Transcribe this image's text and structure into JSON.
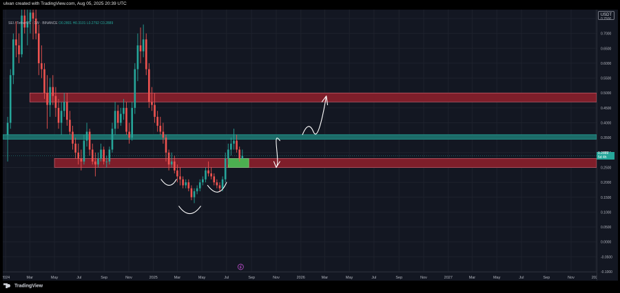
{
  "header": {
    "creator": "ulvan created with TradingView.com, Aug 05, 2025 20:39 UTC"
  },
  "legend": {
    "symbol": "SEI / TetherUS · 1W · BINANCE",
    "open": "O0.2801",
    "high": "H0.3101",
    "low": "L0.2792",
    "close": "C0.2889"
  },
  "axis": {
    "unit": "USDT",
    "price_ticks": [
      "0.7500",
      "0.7000",
      "0.6500",
      "0.6000",
      "0.5500",
      "0.5000",
      "0.4500",
      "0.4000",
      "0.3500",
      "0.3000",
      "0.2500",
      "0.2000",
      "0.1500",
      "0.1000",
      "0.0500",
      "0.0000",
      "-0.0500",
      "-0.1000"
    ],
    "time_ticks": [
      "2024",
      "Mar",
      "May",
      "Jul",
      "Sep",
      "Nov",
      "2025",
      "Mar",
      "May",
      "Jul",
      "Sep",
      "Nov",
      "2026",
      "Mar",
      "May",
      "Jul",
      "Sep",
      "Nov",
      "2027",
      "Mar",
      "May",
      "Jul",
      "Sep",
      "Nov",
      "2028"
    ]
  },
  "last_price": {
    "value": "0.2889",
    "countdown": "5d 4h"
  },
  "footer": {
    "brand": "TradingView"
  },
  "colors": {
    "background": "#131722",
    "up": "#26a69a",
    "down": "#ef5350",
    "resistance_zone": "#7e1e2a",
    "pivot_zone": "#1c6b68",
    "target_box": "#4caf50"
  },
  "chart_data": {
    "type": "candlestick",
    "title": "SEI / TetherUS · 1W · BINANCE",
    "ylabel": "USDT",
    "ylim": [
      -0.1,
      0.78
    ],
    "xlim": [
      "2023-12-25",
      "2028-01-03"
    ],
    "grid": true,
    "zones": [
      {
        "kind": "resistance",
        "color": "#7e1e2a",
        "y_low": 0.47,
        "y_high": 0.5,
        "x_from": "2024-03-01",
        "x_to": "2028-01-03"
      },
      {
        "kind": "pivot",
        "color": "#1c6b68",
        "y_low": 0.345,
        "y_high": 0.36,
        "x_from": "2023-12-25",
        "x_to": "2028-01-03"
      },
      {
        "kind": "support",
        "color": "#7e1e2a",
        "y_low": 0.25,
        "y_high": 0.28,
        "x_from": "2024-05-01",
        "x_to": "2028-01-03"
      },
      {
        "kind": "target-box",
        "color": "#4caf50",
        "y_low": 0.25,
        "y_high": 0.28,
        "x_from": "2025-07-05",
        "x_to": "2025-08-25"
      }
    ],
    "series": [
      {
        "candles": [
          {
            "x": "2024-01-01",
            "o": 0.36,
            "h": 0.42,
            "l": 0.27,
            "c": 0.4
          },
          {
            "x": "2024-01-08",
            "o": 0.4,
            "h": 0.58,
            "l": 0.38,
            "c": 0.56
          },
          {
            "x": "2024-01-15",
            "o": 0.56,
            "h": 0.7,
            "l": 0.53,
            "c": 0.68
          },
          {
            "x": "2024-01-22",
            "o": 0.68,
            "h": 0.74,
            "l": 0.62,
            "c": 0.66
          },
          {
            "x": "2024-01-29",
            "o": 0.66,
            "h": 0.7,
            "l": 0.6,
            "c": 0.63
          },
          {
            "x": "2024-02-05",
            "o": 0.63,
            "h": 0.78,
            "l": 0.62,
            "c": 0.76
          },
          {
            "x": "2024-02-12",
            "o": 0.76,
            "h": 0.8,
            "l": 0.7,
            "c": 0.72
          },
          {
            "x": "2024-02-19",
            "o": 0.72,
            "h": 0.78,
            "l": 0.66,
            "c": 0.74
          },
          {
            "x": "2024-02-26",
            "o": 0.74,
            "h": 0.8,
            "l": 0.7,
            "c": 0.77
          },
          {
            "x": "2024-03-04",
            "o": 0.77,
            "h": 0.8,
            "l": 0.68,
            "c": 0.75
          },
          {
            "x": "2024-03-11",
            "o": 0.75,
            "h": 0.8,
            "l": 0.68,
            "c": 0.7
          },
          {
            "x": "2024-03-18",
            "o": 0.7,
            "h": 0.73,
            "l": 0.56,
            "c": 0.6
          },
          {
            "x": "2024-03-25",
            "o": 0.6,
            "h": 0.66,
            "l": 0.55,
            "c": 0.58
          },
          {
            "x": "2024-04-01",
            "o": 0.58,
            "h": 0.6,
            "l": 0.48,
            "c": 0.5
          },
          {
            "x": "2024-04-08",
            "o": 0.5,
            "h": 0.56,
            "l": 0.38,
            "c": 0.46
          },
          {
            "x": "2024-04-15",
            "o": 0.46,
            "h": 0.55,
            "l": 0.42,
            "c": 0.52
          },
          {
            "x": "2024-04-22",
            "o": 0.52,
            "h": 0.56,
            "l": 0.46,
            "c": 0.49
          },
          {
            "x": "2024-04-29",
            "o": 0.49,
            "h": 0.52,
            "l": 0.42,
            "c": 0.45
          },
          {
            "x": "2024-05-06",
            "o": 0.45,
            "h": 0.48,
            "l": 0.38,
            "c": 0.4
          },
          {
            "x": "2024-05-13",
            "o": 0.4,
            "h": 0.47,
            "l": 0.36,
            "c": 0.44
          },
          {
            "x": "2024-05-20",
            "o": 0.44,
            "h": 0.5,
            "l": 0.42,
            "c": 0.47
          },
          {
            "x": "2024-05-27",
            "o": 0.47,
            "h": 0.5,
            "l": 0.39,
            "c": 0.41
          },
          {
            "x": "2024-06-03",
            "o": 0.41,
            "h": 0.44,
            "l": 0.36,
            "c": 0.37
          },
          {
            "x": "2024-06-10",
            "o": 0.37,
            "h": 0.39,
            "l": 0.31,
            "c": 0.33
          },
          {
            "x": "2024-06-17",
            "o": 0.33,
            "h": 0.35,
            "l": 0.28,
            "c": 0.3
          },
          {
            "x": "2024-06-24",
            "o": 0.3,
            "h": 0.33,
            "l": 0.26,
            "c": 0.28
          },
          {
            "x": "2024-07-01",
            "o": 0.28,
            "h": 0.31,
            "l": 0.24,
            "c": 0.27
          },
          {
            "x": "2024-07-08",
            "o": 0.27,
            "h": 0.36,
            "l": 0.26,
            "c": 0.34
          },
          {
            "x": "2024-07-15",
            "o": 0.34,
            "h": 0.4,
            "l": 0.32,
            "c": 0.37
          },
          {
            "x": "2024-07-22",
            "o": 0.37,
            "h": 0.38,
            "l": 0.29,
            "c": 0.31
          },
          {
            "x": "2024-07-29",
            "o": 0.31,
            "h": 0.33,
            "l": 0.26,
            "c": 0.27
          },
          {
            "x": "2024-08-05",
            "o": 0.27,
            "h": 0.3,
            "l": 0.22,
            "c": 0.26
          },
          {
            "x": "2024-08-12",
            "o": 0.26,
            "h": 0.3,
            "l": 0.25,
            "c": 0.28
          },
          {
            "x": "2024-08-19",
            "o": 0.28,
            "h": 0.33,
            "l": 0.27,
            "c": 0.31
          },
          {
            "x": "2024-08-26",
            "o": 0.31,
            "h": 0.32,
            "l": 0.26,
            "c": 0.27
          },
          {
            "x": "2024-09-02",
            "o": 0.27,
            "h": 0.29,
            "l": 0.25,
            "c": 0.27
          },
          {
            "x": "2024-09-09",
            "o": 0.27,
            "h": 0.32,
            "l": 0.26,
            "c": 0.31
          },
          {
            "x": "2024-09-16",
            "o": 0.31,
            "h": 0.4,
            "l": 0.3,
            "c": 0.38
          },
          {
            "x": "2024-09-23",
            "o": 0.38,
            "h": 0.47,
            "l": 0.36,
            "c": 0.44
          },
          {
            "x": "2024-09-30",
            "o": 0.44,
            "h": 0.46,
            "l": 0.38,
            "c": 0.4
          },
          {
            "x": "2024-10-07",
            "o": 0.4,
            "h": 0.45,
            "l": 0.39,
            "c": 0.43
          },
          {
            "x": "2024-10-14",
            "o": 0.43,
            "h": 0.48,
            "l": 0.41,
            "c": 0.45
          },
          {
            "x": "2024-10-21",
            "o": 0.45,
            "h": 0.47,
            "l": 0.36,
            "c": 0.37
          },
          {
            "x": "2024-10-28",
            "o": 0.37,
            "h": 0.4,
            "l": 0.33,
            "c": 0.35
          },
          {
            "x": "2024-11-04",
            "o": 0.35,
            "h": 0.47,
            "l": 0.34,
            "c": 0.45
          },
          {
            "x": "2024-11-11",
            "o": 0.45,
            "h": 0.6,
            "l": 0.43,
            "c": 0.58
          },
          {
            "x": "2024-11-18",
            "o": 0.58,
            "h": 0.7,
            "l": 0.54,
            "c": 0.66
          },
          {
            "x": "2024-11-25",
            "o": 0.66,
            "h": 0.72,
            "l": 0.6,
            "c": 0.64
          },
          {
            "x": "2024-12-02",
            "o": 0.64,
            "h": 0.73,
            "l": 0.62,
            "c": 0.68
          },
          {
            "x": "2024-12-09",
            "o": 0.68,
            "h": 0.7,
            "l": 0.56,
            "c": 0.58
          },
          {
            "x": "2024-12-16",
            "o": 0.58,
            "h": 0.6,
            "l": 0.45,
            "c": 0.47
          },
          {
            "x": "2024-12-23",
            "o": 0.47,
            "h": 0.52,
            "l": 0.44,
            "c": 0.46
          },
          {
            "x": "2024-12-30",
            "o": 0.46,
            "h": 0.5,
            "l": 0.4,
            "c": 0.42
          },
          {
            "x": "2025-01-06",
            "o": 0.42,
            "h": 0.44,
            "l": 0.37,
            "c": 0.39
          },
          {
            "x": "2025-01-13",
            "o": 0.39,
            "h": 0.42,
            "l": 0.36,
            "c": 0.37
          },
          {
            "x": "2025-01-20",
            "o": 0.37,
            "h": 0.4,
            "l": 0.33,
            "c": 0.35
          },
          {
            "x": "2025-01-27",
            "o": 0.35,
            "h": 0.36,
            "l": 0.27,
            "c": 0.3
          },
          {
            "x": "2025-02-03",
            "o": 0.3,
            "h": 0.31,
            "l": 0.24,
            "c": 0.26
          },
          {
            "x": "2025-02-10",
            "o": 0.26,
            "h": 0.3,
            "l": 0.25,
            "c": 0.27
          },
          {
            "x": "2025-02-17",
            "o": 0.27,
            "h": 0.29,
            "l": 0.23,
            "c": 0.24
          },
          {
            "x": "2025-02-24",
            "o": 0.24,
            "h": 0.26,
            "l": 0.2,
            "c": 0.22
          },
          {
            "x": "2025-03-03",
            "o": 0.22,
            "h": 0.25,
            "l": 0.19,
            "c": 0.21
          },
          {
            "x": "2025-03-10",
            "o": 0.21,
            "h": 0.22,
            "l": 0.18,
            "c": 0.19
          },
          {
            "x": "2025-03-17",
            "o": 0.19,
            "h": 0.21,
            "l": 0.18,
            "c": 0.2
          },
          {
            "x": "2025-03-24",
            "o": 0.2,
            "h": 0.21,
            "l": 0.17,
            "c": 0.18
          },
          {
            "x": "2025-03-31",
            "o": 0.18,
            "h": 0.19,
            "l": 0.14,
            "c": 0.15
          },
          {
            "x": "2025-04-07",
            "o": 0.15,
            "h": 0.18,
            "l": 0.13,
            "c": 0.17
          },
          {
            "x": "2025-04-14",
            "o": 0.17,
            "h": 0.19,
            "l": 0.16,
            "c": 0.18
          },
          {
            "x": "2025-04-21",
            "o": 0.18,
            "h": 0.21,
            "l": 0.17,
            "c": 0.2
          },
          {
            "x": "2025-04-28",
            "o": 0.2,
            "h": 0.22,
            "l": 0.19,
            "c": 0.21
          },
          {
            "x": "2025-05-05",
            "o": 0.21,
            "h": 0.25,
            "l": 0.2,
            "c": 0.24
          },
          {
            "x": "2025-05-12",
            "o": 0.24,
            "h": 0.27,
            "l": 0.22,
            "c": 0.23
          },
          {
            "x": "2025-05-19",
            "o": 0.23,
            "h": 0.25,
            "l": 0.21,
            "c": 0.22
          },
          {
            "x": "2025-05-26",
            "o": 0.22,
            "h": 0.23,
            "l": 0.19,
            "c": 0.2
          },
          {
            "x": "2025-06-02",
            "o": 0.2,
            "h": 0.21,
            "l": 0.18,
            "c": 0.19
          },
          {
            "x": "2025-06-09",
            "o": 0.19,
            "h": 0.2,
            "l": 0.17,
            "c": 0.18
          },
          {
            "x": "2025-06-16",
            "o": 0.18,
            "h": 0.22,
            "l": 0.17,
            "c": 0.21
          },
          {
            "x": "2025-06-23",
            "o": 0.21,
            "h": 0.3,
            "l": 0.2,
            "c": 0.28
          },
          {
            "x": "2025-06-30",
            "o": 0.28,
            "h": 0.33,
            "l": 0.26,
            "c": 0.31
          },
          {
            "x": "2025-07-07",
            "o": 0.31,
            "h": 0.35,
            "l": 0.29,
            "c": 0.33
          },
          {
            "x": "2025-07-14",
            "o": 0.33,
            "h": 0.38,
            "l": 0.31,
            "c": 0.34
          },
          {
            "x": "2025-07-21",
            "o": 0.34,
            "h": 0.36,
            "l": 0.3,
            "c": 0.31
          },
          {
            "x": "2025-07-28",
            "o": 0.31,
            "h": 0.32,
            "l": 0.27,
            "c": 0.28
          },
          {
            "x": "2025-08-04",
            "o": 0.2801,
            "h": 0.3101,
            "l": 0.2792,
            "c": 0.2889
          }
        ]
      }
    ]
  }
}
